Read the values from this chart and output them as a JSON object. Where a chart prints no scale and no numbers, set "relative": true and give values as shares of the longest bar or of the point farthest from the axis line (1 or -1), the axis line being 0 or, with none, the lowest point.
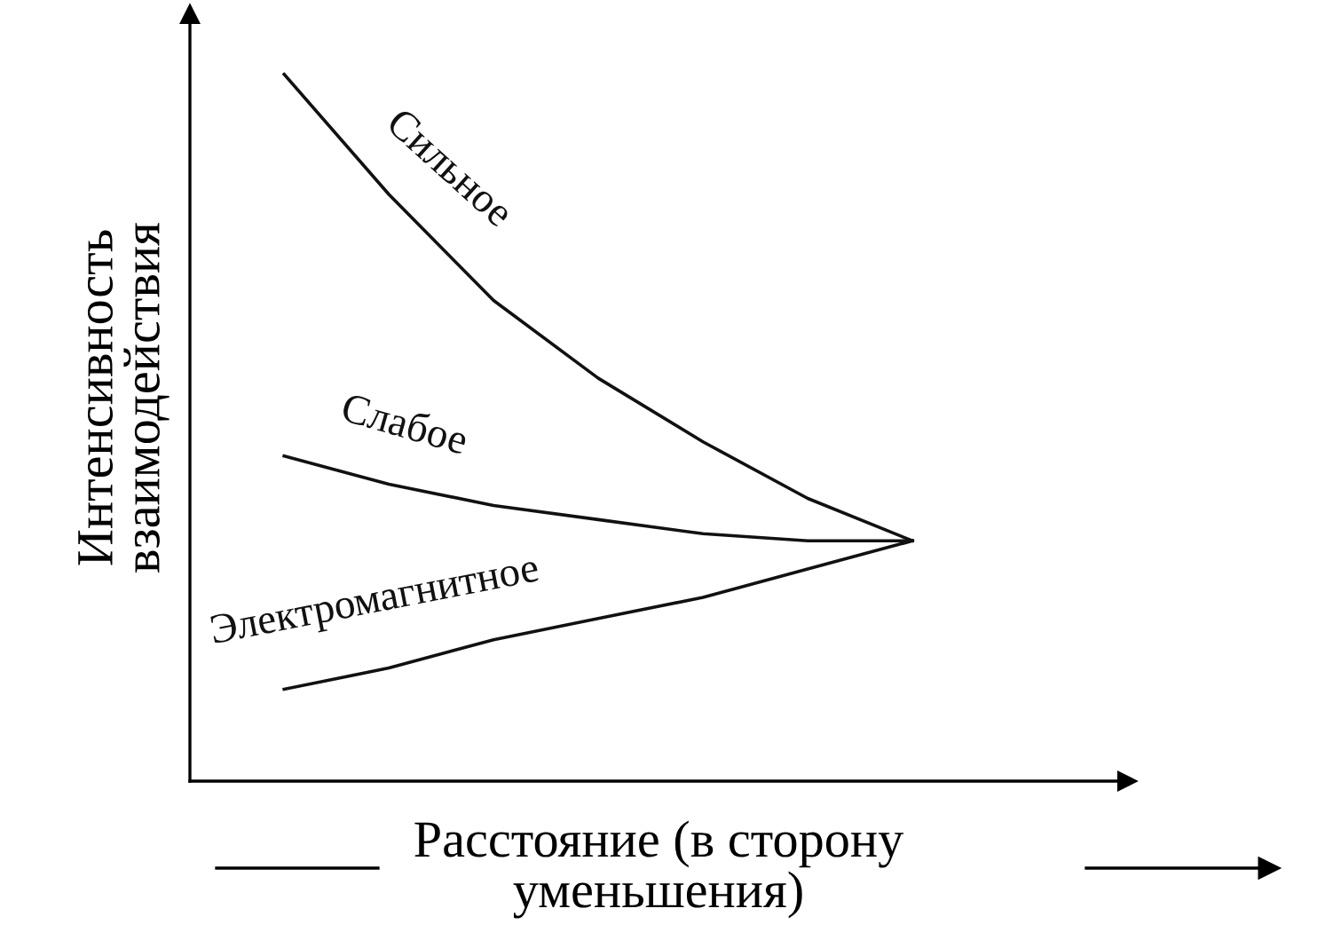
{
  "chart_data": {
    "type": "line",
    "relative": true,
    "legend": false,
    "marker": "none",
    "line_style": "solid",
    "xlabel": "Расстояние (в сторону\nуменьшения)",
    "ylabel": "Интенсивность\nвзаимодействия",
    "categories": [
      null,
      null,
      null,
      null,
      null,
      null,
      null
    ],
    "series": [
      {
        "name": "Сильное",
        "color": "#111111",
        "values": [
          1.0,
          0.83,
          0.68,
          0.57,
          0.48,
          0.4,
          0.34
        ]
      },
      {
        "name": "Слабое",
        "color": "#111111",
        "values": [
          0.46,
          0.42,
          0.39,
          0.37,
          0.35,
          0.34,
          0.34
        ]
      },
      {
        "name": "Электромагнитное",
        "color": "#111111",
        "values": [
          0.13,
          0.16,
          0.2,
          0.23,
          0.26,
          0.3,
          0.34
        ]
      }
    ]
  }
}
